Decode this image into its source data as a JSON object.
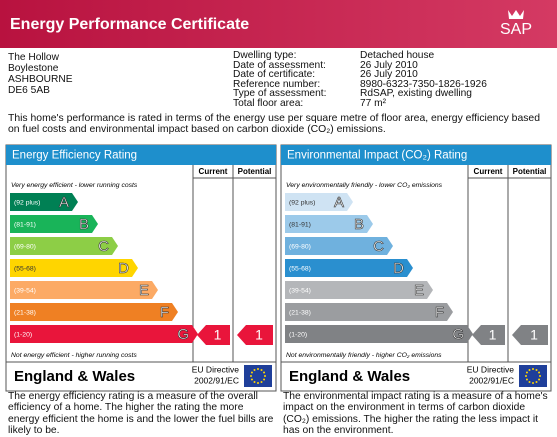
{
  "header": {
    "title": "Energy Performance Certificate",
    "logo": "SAP"
  },
  "address": [
    "The Hollow",
    "Boylestone",
    "ASHBOURNE",
    "DE6 5AB"
  ],
  "details": [
    {
      "label": "Dwelling type:",
      "value": "Detached house"
    },
    {
      "label": "Date of assessment:",
      "value": "26 July 2010"
    },
    {
      "label": "Date of certificate:",
      "value": "26 July 2010"
    },
    {
      "label": "Reference number:",
      "value": "8980-6323-7350-1826-1926"
    },
    {
      "label": "Type of assessment:",
      "value": "RdSAP, existing dwelling"
    },
    {
      "label": "Total floor area:",
      "value": "77 m²"
    }
  ],
  "intro": "This home's performance is rated in terms of the energy use per square metre of floor area, energy efficiency based on fuel costs and environmental impact based on carbon dioxide (CO₂) emissions.",
  "panels": [
    {
      "title": "Energy Efficiency Rating",
      "columns": [
        "Current",
        "Potential"
      ],
      "top_caption": "Very energy efficient - lower running costs",
      "bottom_caption": "Not energy efficient - higher running costs",
      "bands": [
        {
          "range": "(92 plus)",
          "letter": "A",
          "color": "#008054"
        },
        {
          "range": "(81-91)",
          "letter": "B",
          "color": "#19b459"
        },
        {
          "range": "(69-80)",
          "letter": "C",
          "color": "#8dce46"
        },
        {
          "range": "(55-68)",
          "letter": "D",
          "color": "#ffd500"
        },
        {
          "range": "(39-54)",
          "letter": "E",
          "color": "#fcaa65"
        },
        {
          "range": "(21-38)",
          "letter": "F",
          "color": "#ef8023"
        },
        {
          "range": "(1-20)",
          "letter": "G",
          "color": "#e9153b"
        }
      ],
      "current": 1,
      "potential": 1,
      "region": "England & Wales",
      "directive": [
        "EU Directive",
        "2002/91/EC"
      ],
      "description": "The energy efficiency rating is a measure of the overall efficiency of a home. The higher the rating the more energy efficient the home is and the lower the fuel bills are likely to be."
    },
    {
      "title": "Environmental Impact (CO₂) Rating",
      "columns": [
        "Current",
        "Potential"
      ],
      "top_caption": "Very environmentally friendly - lower CO₂ emissions",
      "bottom_caption": "Not environmentally friendly - higher CO₂ emissions",
      "bands": [
        {
          "range": "(92 plus)",
          "letter": "A",
          "color": "#cfe3f3"
        },
        {
          "range": "(81-91)",
          "letter": "B",
          "color": "#9ccaea"
        },
        {
          "range": "(69-80)",
          "letter": "C",
          "color": "#6fb1de"
        },
        {
          "range": "(55-68)",
          "letter": "D",
          "color": "#2a8fcf"
        },
        {
          "range": "(39-54)",
          "letter": "E",
          "color": "#b4b6b9"
        },
        {
          "range": "(21-38)",
          "letter": "F",
          "color": "#9b9da0"
        },
        {
          "range": "(1-20)",
          "letter": "G",
          "color": "#808285"
        }
      ],
      "current": 1,
      "potential": 1,
      "region": "England & Wales",
      "directive": [
        "EU Directive",
        "2002/91/EC"
      ],
      "description": "The environmental impact rating is a measure of a home's impact on the environment in terms of carbon dioxide (CO₂) emissions. The higher the rating the less impact it has on the environment."
    }
  ]
}
